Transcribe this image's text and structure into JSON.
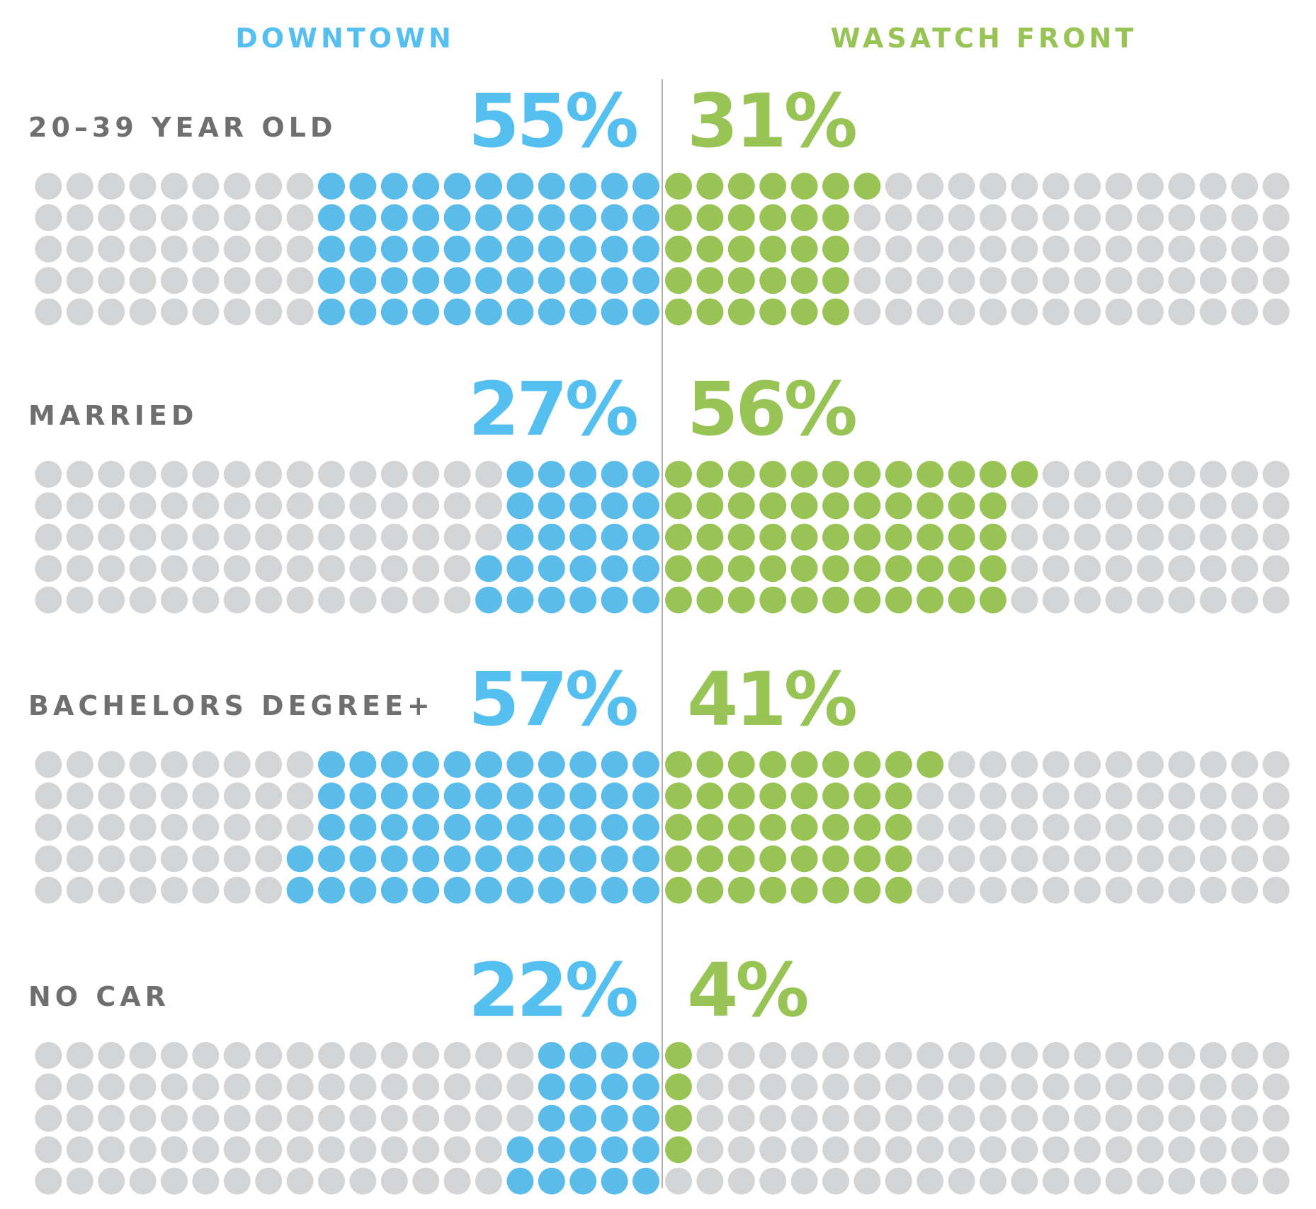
{
  "chart_data": {
    "type": "dot-grid",
    "columns": [
      "DOWNTOWN",
      "WASATCH FRONT"
    ],
    "colors": {
      "downtown": "#5bbcea",
      "wasatch": "#9ac356",
      "downtown_text": "#55bff0",
      "wasatch_text": "#97c455",
      "empty": "#d3d4d6",
      "category_text": "#6f6f6f",
      "divider": "#b0b0b0"
    },
    "dots_per_side": 100,
    "rows": [
      {
        "category": "20–39 YEAR OLD",
        "downtown_label": "55%",
        "wasatch_label": "31%",
        "downtown": 55,
        "wasatch": 31
      },
      {
        "category": "MARRIED",
        "downtown_label": "27%",
        "wasatch_label": "56%",
        "downtown": 27,
        "wasatch": 56
      },
      {
        "category": "BACHELORS DEGREE+",
        "downtown_label": "57%",
        "wasatch_label": "41%",
        "downtown": 57,
        "wasatch": 41
      },
      {
        "category": "NO CAR",
        "downtown_label": "22%",
        "wasatch_label": "4%",
        "downtown": 22,
        "wasatch": 4
      }
    ]
  }
}
